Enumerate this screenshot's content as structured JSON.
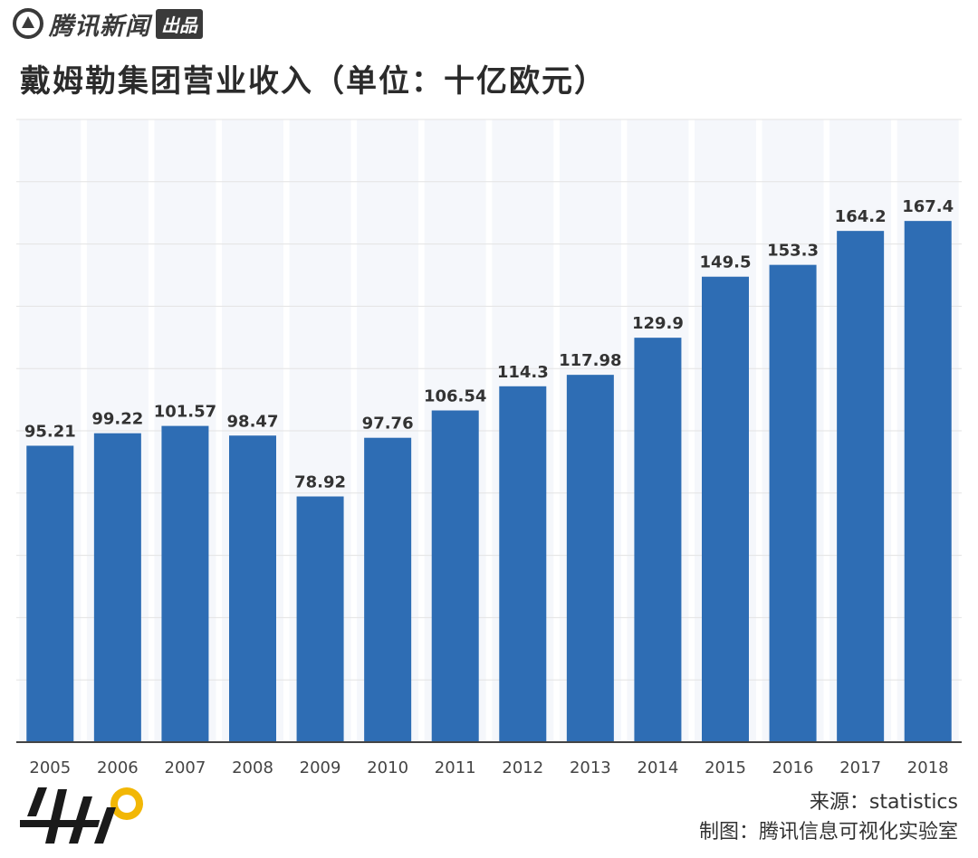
{
  "header": {
    "brand_name": "腾讯新闻",
    "brand_tag": "出品"
  },
  "chart_data": {
    "type": "bar",
    "title": "戴姆勒集团营业收入（单位：十亿欧元）",
    "categories": [
      "2005",
      "2006",
      "2007",
      "2008",
      "2009",
      "2010",
      "2011",
      "2012",
      "2013",
      "2014",
      "2015",
      "2016",
      "2017",
      "2018"
    ],
    "values": [
      95.21,
      99.22,
      101.57,
      98.47,
      78.92,
      97.76,
      106.54,
      114.3,
      117.98,
      129.9,
      149.5,
      153.3,
      164.2,
      167.4
    ],
    "value_labels": [
      "95.21",
      "99.22",
      "101.57",
      "98.47",
      "78.92",
      "97.76",
      "106.54",
      "114.3",
      "117.98",
      "129.9",
      "149.5",
      "153.3",
      "164.2",
      "167.4"
    ],
    "xlabel": "",
    "ylabel": "",
    "ylim": [
      0,
      200
    ],
    "grid": true,
    "bar_color": "#2e6db4"
  },
  "footer": {
    "source": "来源：statistics",
    "credit": "制图：腾讯信息可视化实验室",
    "logo_text": "财看见"
  }
}
